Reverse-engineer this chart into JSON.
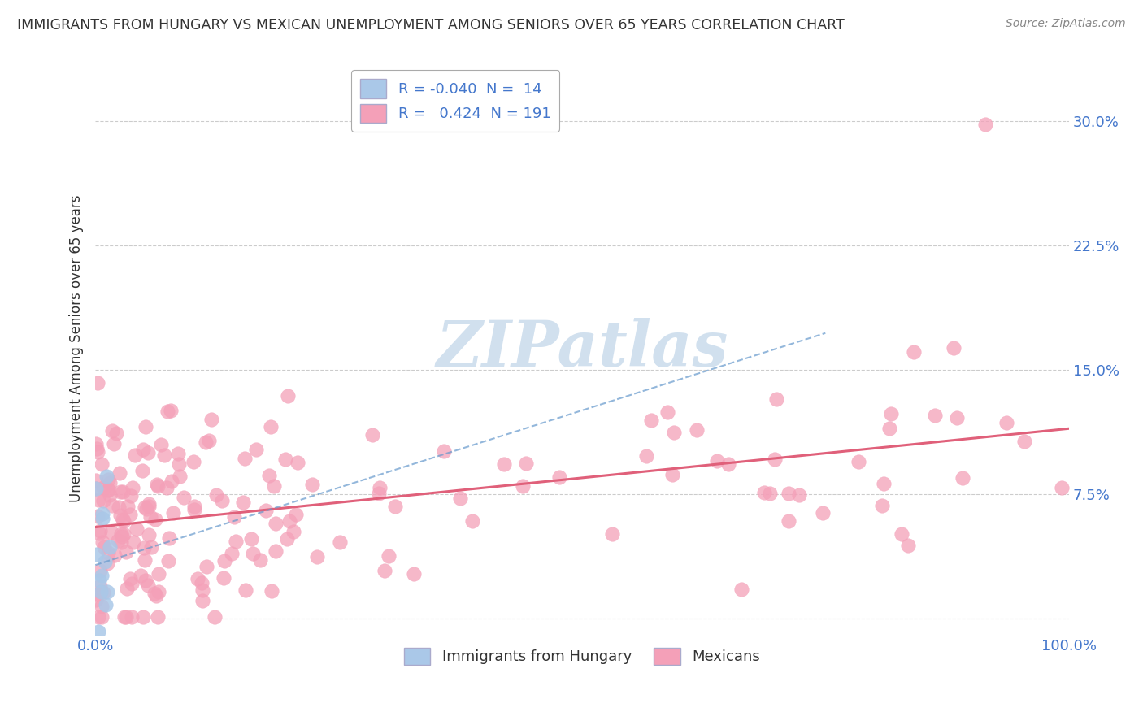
{
  "title": "IMMIGRANTS FROM HUNGARY VS MEXICAN UNEMPLOYMENT AMONG SENIORS OVER 65 YEARS CORRELATION CHART",
  "source": "Source: ZipAtlas.com",
  "ylabel": "Unemployment Among Seniors over 65 years",
  "xlim": [
    0,
    1.0
  ],
  "ylim": [
    -0.01,
    0.335
  ],
  "yticks": [
    0.0,
    0.075,
    0.15,
    0.225,
    0.3
  ],
  "ytick_labels": [
    "",
    "7.5%",
    "15.0%",
    "22.5%",
    "30.0%"
  ],
  "series_hungary": {
    "label": "Immigrants from Hungary",
    "color": "#aac8e8",
    "line_color": "#6699cc",
    "R": -0.04,
    "N": 14
  },
  "series_mexico": {
    "label": "Mexicans",
    "color": "#f4a0b8",
    "line_color": "#e0607a",
    "R": 0.424,
    "N": 191
  },
  "background_color": "#ffffff",
  "grid_color": "#cccccc",
  "tick_color": "#4477cc",
  "title_color": "#333333",
  "source_color": "#888888",
  "watermark_color": "#ccdded",
  "legend_R_color": "#4477cc"
}
